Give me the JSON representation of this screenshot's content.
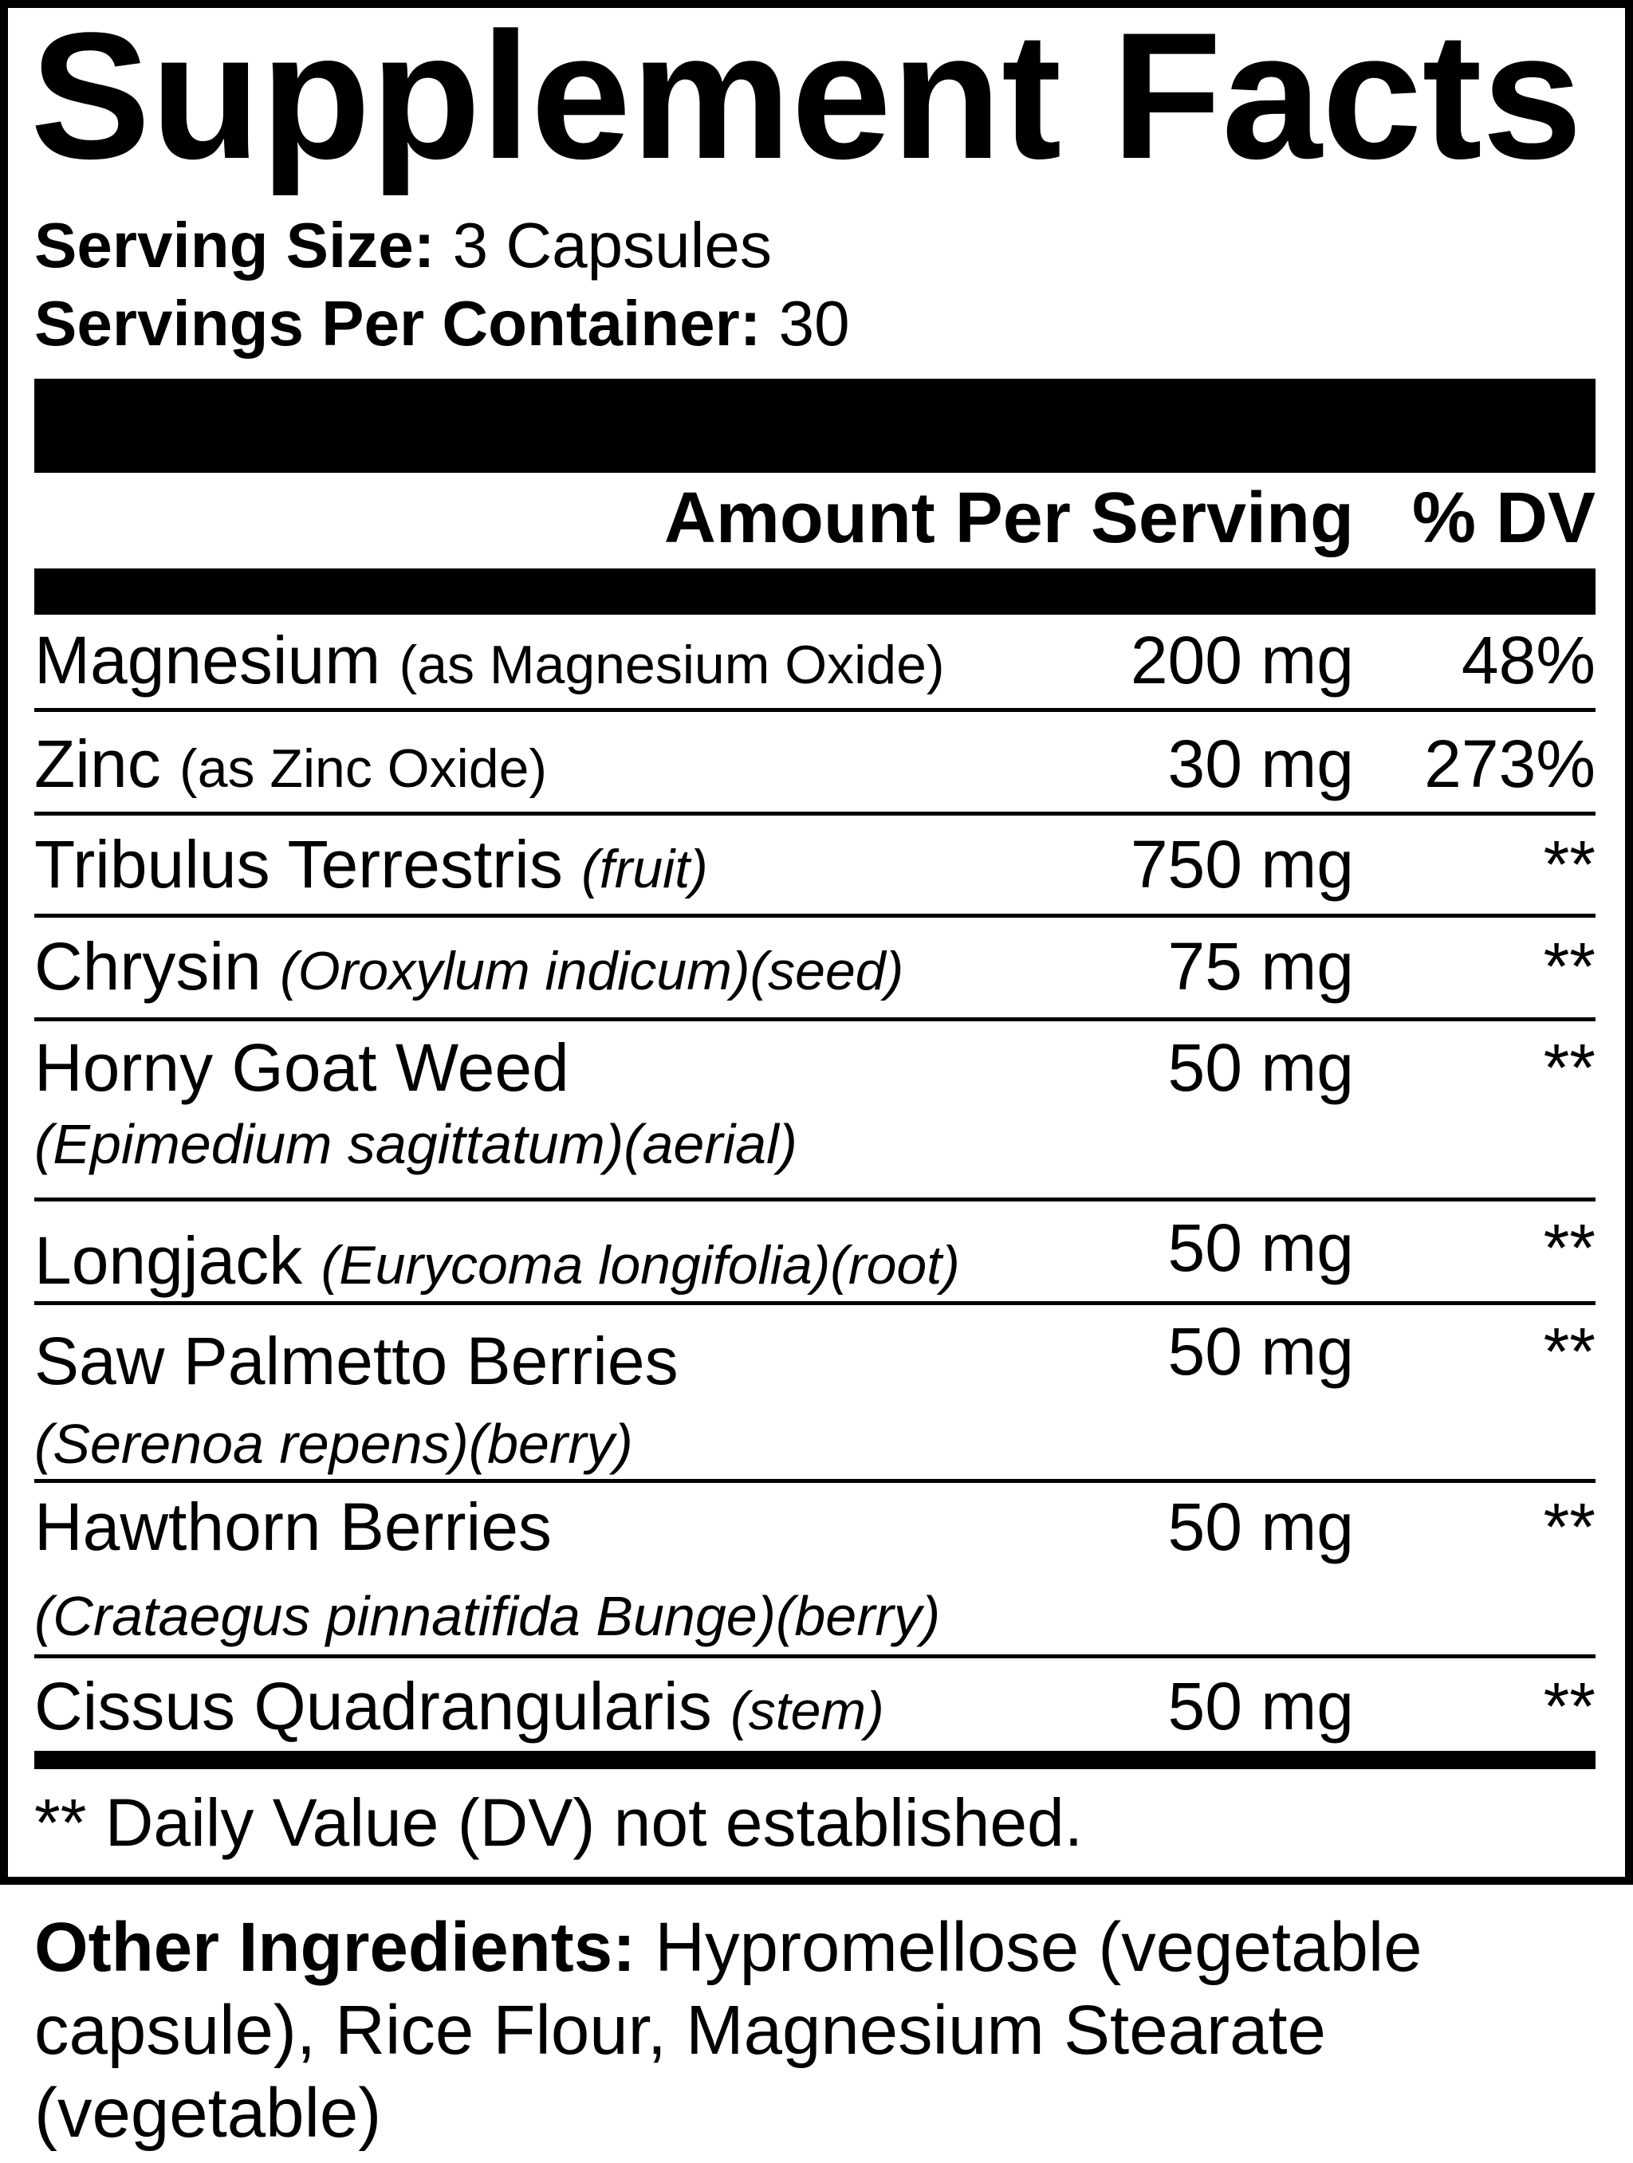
{
  "title": "Supplement Facts",
  "serving_size": {
    "label": "Serving Size:",
    "value": "3 Capsules"
  },
  "servings_per_container": {
    "label": "Servings Per Container:",
    "value": "30"
  },
  "header": {
    "amount": "Amount Per Serving",
    "dv": "% DV"
  },
  "rows": [
    {
      "name": "Magnesium",
      "note": "(as Magnesium Oxide)",
      "amount": "200 mg",
      "dv": "48%"
    },
    {
      "name": "Zinc",
      "note": "(as Zinc Oxide)",
      "amount": "30 mg",
      "dv": "273%"
    },
    {
      "name": "Tribulus Terrestris",
      "note": "(fruit)",
      "amount": "750 mg",
      "dv": "**"
    },
    {
      "name": "Chrysin",
      "note": "(Oroxylum indicum)(seed)",
      "amount": "75 mg",
      "dv": "**"
    },
    {
      "name": "Horny Goat Weed",
      "sub": "(Epimedium sagittatum)(aerial)",
      "amount": "50 mg",
      "dv": "**"
    },
    {
      "name": "Longjack",
      "note": "(Eurycoma longifolia)(root)",
      "amount": "50 mg",
      "dv": "**"
    },
    {
      "name": "Saw Palmetto Berries",
      "sub": "(Serenoa repens)(berry)",
      "amount": "50 mg",
      "dv": "**"
    },
    {
      "name": "Hawthorn Berries",
      "sub": "(Crataegus pinnatifida Bunge)(berry)",
      "amount": "50 mg",
      "dv": "**"
    },
    {
      "name": "Cissus Quadrangularis",
      "note": "(stem)",
      "amount": "50 mg",
      "dv": "**"
    }
  ],
  "footnote": "** Daily Value (DV) not established.",
  "other_ingredients": {
    "label": "Other Ingredients:",
    "value": "Hypromellose (vegetable capsule), Rice Flour, Magnesium Stearate (vegetable)"
  }
}
